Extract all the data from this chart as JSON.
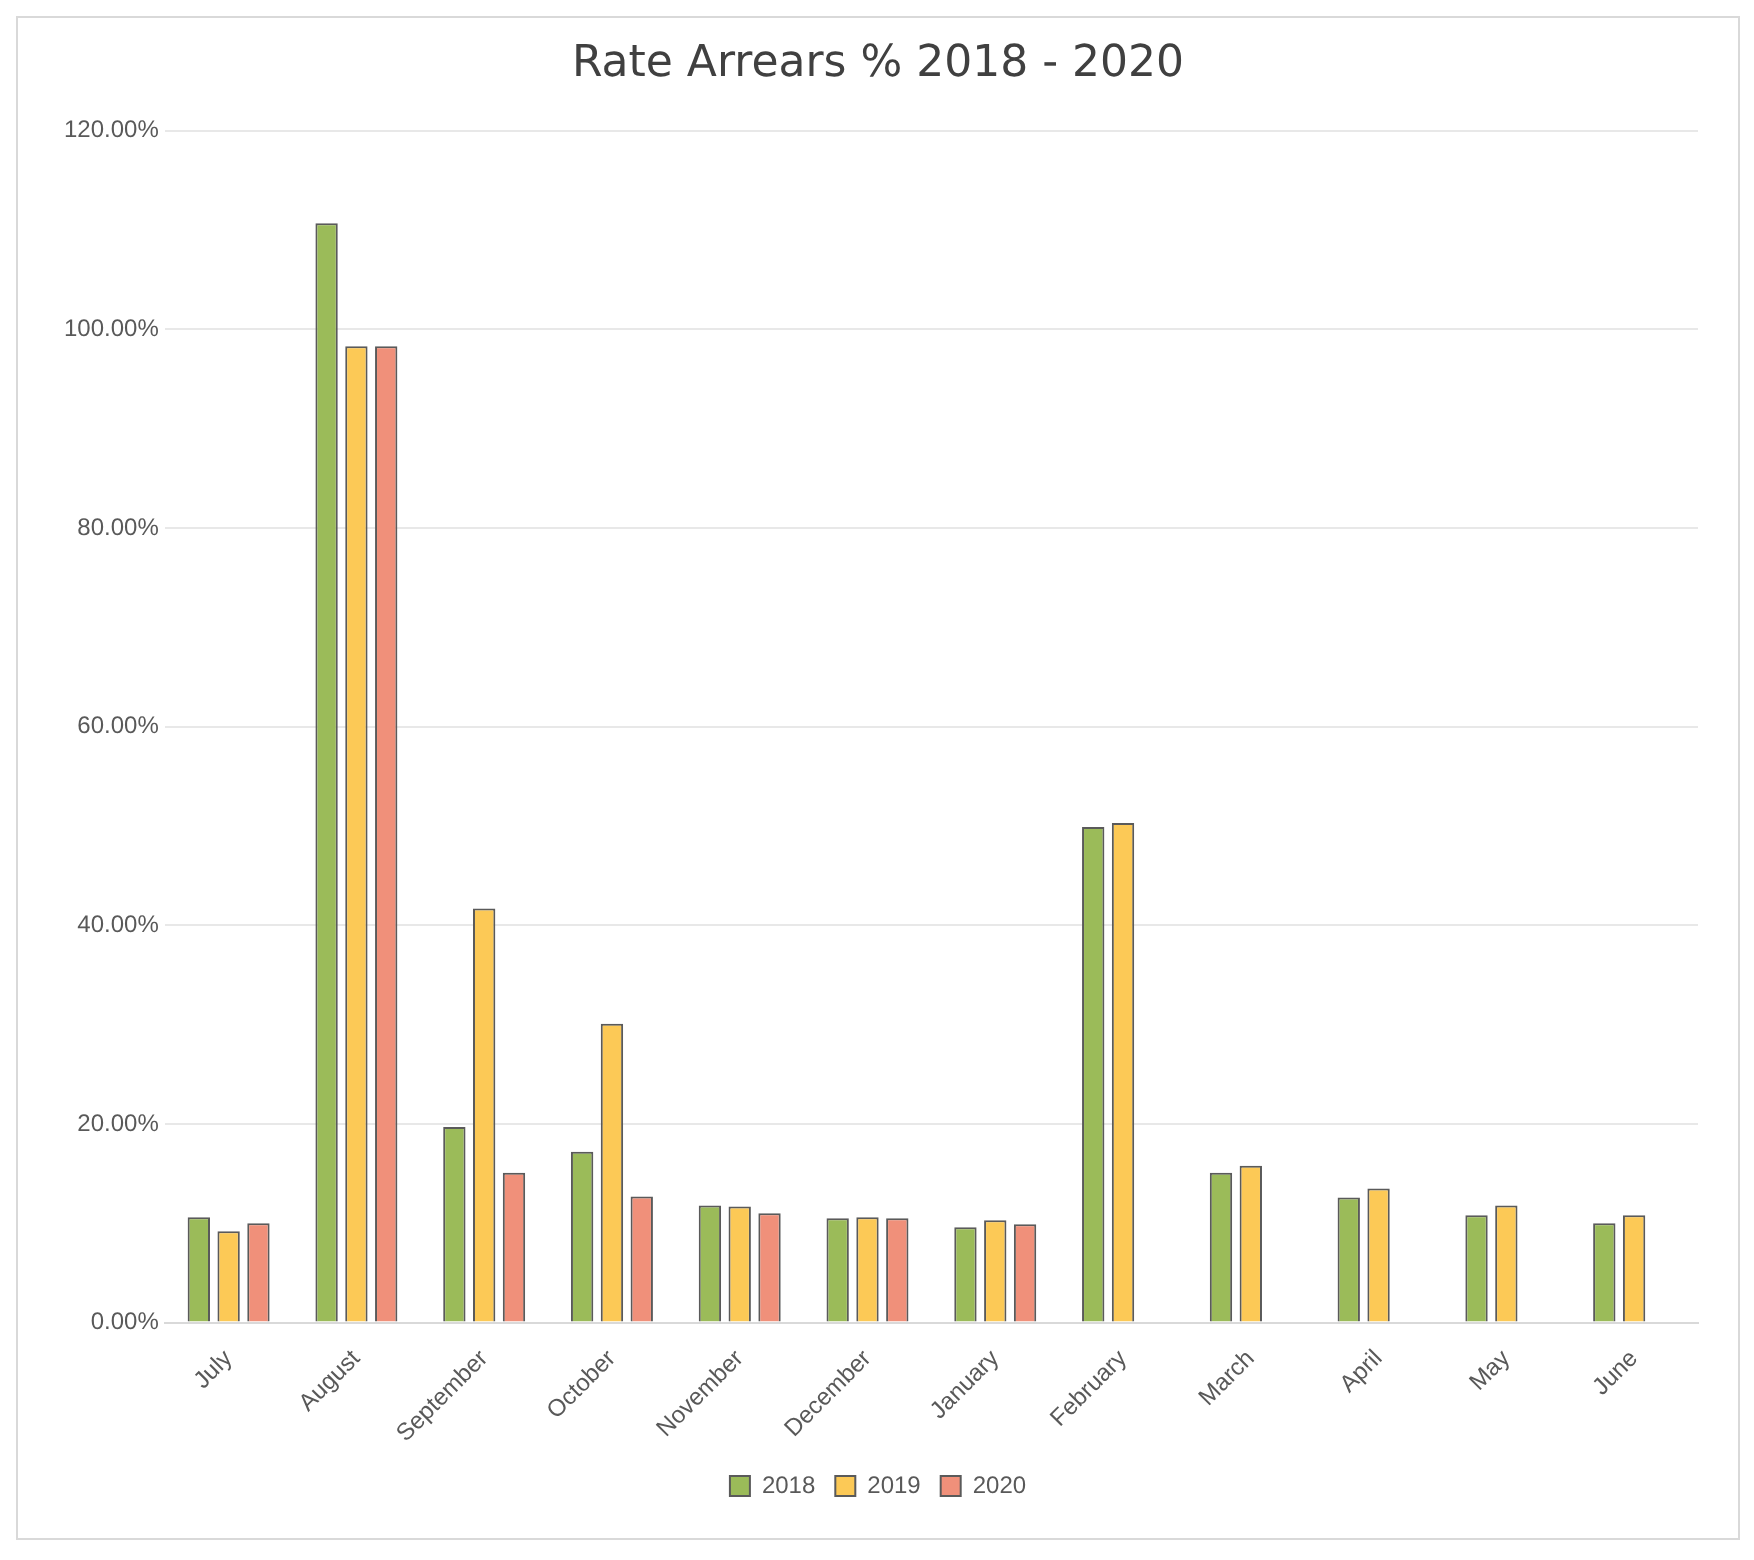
{
  "chart_data": {
    "type": "bar",
    "title": "Rate Arrears % 2018 - 2020",
    "categories": [
      "July",
      "August",
      "September",
      "October",
      "November",
      "December",
      "January",
      "February",
      "March",
      "April",
      "May",
      "June"
    ],
    "series": [
      {
        "name": "2018",
        "color": "#9bbb59",
        "values": [
          10.6,
          110.7,
          19.7,
          17.2,
          11.8,
          10.5,
          9.6,
          49.9,
          15.1,
          12.6,
          10.8,
          10.0
        ]
      },
      {
        "name": "2019",
        "color": "#fcc956",
        "values": [
          9.2,
          98.3,
          41.7,
          30.1,
          11.7,
          10.6,
          10.3,
          50.3,
          15.8,
          13.5,
          11.8,
          10.8
        ]
      },
      {
        "name": "2020",
        "color": "#f0907a",
        "values": [
          10.0,
          98.3,
          15.1,
          12.7,
          11.0,
          10.5,
          9.9,
          null,
          null,
          null,
          null,
          null
        ]
      }
    ],
    "ylim": [
      0,
      120
    ],
    "yticks": [
      {
        "value": 0,
        "label": "0.00%"
      },
      {
        "value": 20,
        "label": "20.00%"
      },
      {
        "value": 40,
        "label": "40.00%"
      },
      {
        "value": 60,
        "label": "60.00%"
      },
      {
        "value": 80,
        "label": "80.00%"
      },
      {
        "value": 100,
        "label": "100.00%"
      },
      {
        "value": 120,
        "label": "120.00%"
      }
    ],
    "grid": "y",
    "legend": "bottom"
  }
}
